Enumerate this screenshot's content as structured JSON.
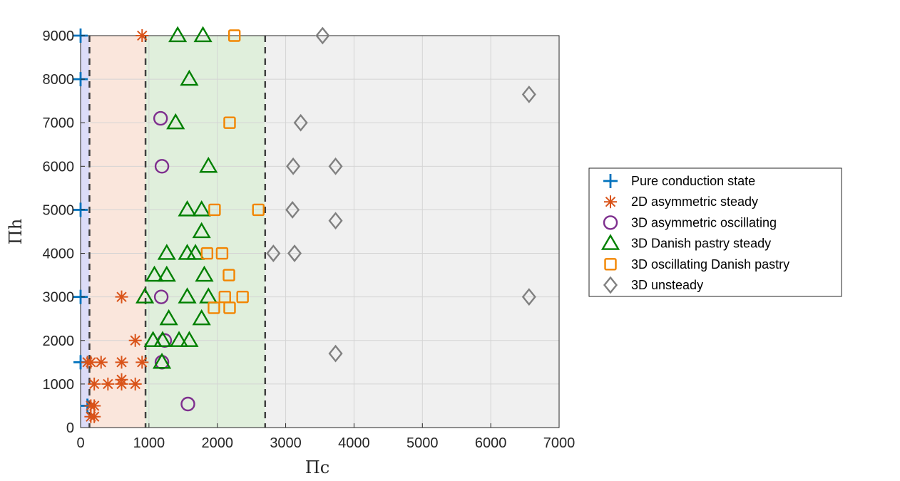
{
  "chart_data": {
    "type": "scatter",
    "xlabel": "Πc",
    "ylabel": "Πh",
    "xlim": [
      0,
      7000
    ],
    "ylim": [
      0,
      9000
    ],
    "xticks": [
      "0",
      "1000",
      "2000",
      "3000",
      "4000",
      "5000",
      "6000",
      "7000"
    ],
    "yticks": [
      "0",
      "1000",
      "2000",
      "3000",
      "4000",
      "5000",
      "6000",
      "7000",
      "8000",
      "9000"
    ],
    "grid": true,
    "legend_position": "outside-right",
    "regions": [
      {
        "x0": 0,
        "x1": 130,
        "color": "#dcdcf8"
      },
      {
        "x0": 130,
        "x1": 950,
        "color": "#fae6dc"
      },
      {
        "x0": 950,
        "x1": 2700,
        "color": "#e0efdc"
      },
      {
        "x0": 2700,
        "x1": 7000,
        "color": "#f0f0f0"
      }
    ],
    "boundaries": [
      130,
      950,
      2700
    ],
    "series": [
      {
        "name": "Pure conduction state",
        "marker": "plus",
        "color": "#0072BD",
        "points": [
          [
            0,
            9000
          ],
          [
            0,
            8000
          ],
          [
            0,
            5000
          ],
          [
            0,
            3000
          ],
          [
            0,
            1500
          ],
          [
            100,
            500
          ]
        ]
      },
      {
        "name": "2D asymmetric steady",
        "marker": "asterisk",
        "color": "#D95319",
        "points": [
          [
            900,
            9000
          ],
          [
            600,
            3000
          ],
          [
            800,
            2000
          ],
          [
            100,
            1500
          ],
          [
            150,
            1500
          ],
          [
            300,
            1500
          ],
          [
            600,
            1500
          ],
          [
            900,
            1500
          ],
          [
            200,
            1000
          ],
          [
            400,
            1000
          ],
          [
            600,
            1000
          ],
          [
            800,
            1000
          ],
          [
            600,
            1100
          ],
          [
            150,
            500
          ],
          [
            200,
            500
          ],
          [
            150,
            250
          ],
          [
            200,
            250
          ]
        ]
      },
      {
        "name": "3D asymmetric oscillating",
        "marker": "circle",
        "color": "#7E2F8E",
        "points": [
          [
            1170,
            7100
          ],
          [
            1190,
            6000
          ],
          [
            1180,
            3000
          ],
          [
            1230,
            2000
          ],
          [
            1190,
            1500
          ],
          [
            1570,
            540
          ]
        ]
      },
      {
        "name": "3D Danish pastry steady",
        "marker": "triangle",
        "color": "#008000",
        "points": [
          [
            1420,
            9000
          ],
          [
            1790,
            9000
          ],
          [
            1590,
            8000
          ],
          [
            1390,
            7000
          ],
          [
            1870,
            6000
          ],
          [
            1560,
            5000
          ],
          [
            1770,
            5000
          ],
          [
            1770,
            4500
          ],
          [
            1260,
            4000
          ],
          [
            1560,
            4000
          ],
          [
            1680,
            4000
          ],
          [
            1080,
            3500
          ],
          [
            1260,
            3500
          ],
          [
            1810,
            3500
          ],
          [
            940,
            3000
          ],
          [
            1560,
            3000
          ],
          [
            1870,
            3000
          ],
          [
            1290,
            2500
          ],
          [
            1770,
            2500
          ],
          [
            1060,
            2000
          ],
          [
            1200,
            2000
          ],
          [
            1440,
            2000
          ],
          [
            1590,
            2000
          ],
          [
            1190,
            1500
          ]
        ]
      },
      {
        "name": "3D oscillating Danish pastry",
        "marker": "square",
        "color": "#F28500",
        "points": [
          [
            2250,
            9000
          ],
          [
            2180,
            7000
          ],
          [
            1960,
            5000
          ],
          [
            2600,
            5000
          ],
          [
            1850,
            4000
          ],
          [
            2070,
            4000
          ],
          [
            2170,
            3500
          ],
          [
            2110,
            3000
          ],
          [
            2370,
            3000
          ],
          [
            1950,
            2750
          ],
          [
            2180,
            2750
          ]
        ]
      },
      {
        "name": "3D unsteady",
        "marker": "diamond",
        "color": "#808080",
        "points": [
          [
            3540,
            9000
          ],
          [
            6560,
            7650
          ],
          [
            3220,
            7000
          ],
          [
            3110,
            6000
          ],
          [
            3730,
            6000
          ],
          [
            3100,
            5000
          ],
          [
            3730,
            4750
          ],
          [
            2820,
            4000
          ],
          [
            3130,
            4000
          ],
          [
            6560,
            3000
          ],
          [
            3730,
            1700
          ]
        ]
      }
    ]
  }
}
